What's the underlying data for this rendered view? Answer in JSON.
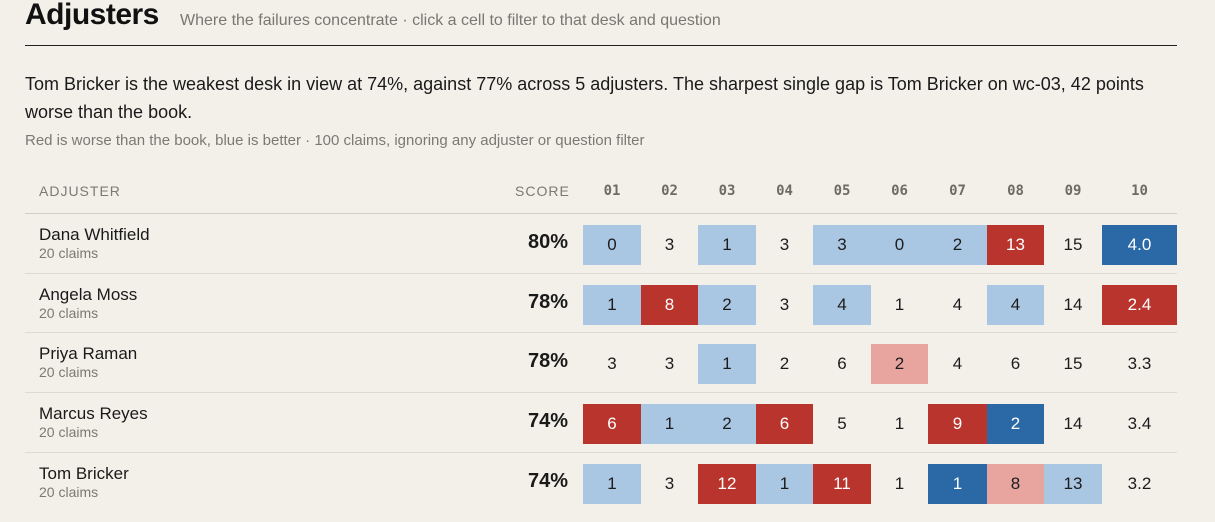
{
  "header": {
    "title": "Adjusters",
    "subtitle": "Where the failures concentrate · click a cell to filter to that desk and question"
  },
  "summary": "Tom Bricker is the weakest desk in view at 74%, against 77% across 5 adjusters. The sharpest single gap is Tom Bricker on wc-03, 42 points worse than the book.",
  "note": "Red is worse than the book, blue is better · 100 claims, ignoring any adjuster or question filter",
  "table": {
    "headers": {
      "adjuster": "ADJUSTER",
      "score": "SCORE"
    },
    "questions": [
      "01",
      "02",
      "03",
      "04",
      "05",
      "06",
      "07",
      "08",
      "09",
      "10"
    ],
    "rows": [
      {
        "name": "Dana Whitfield",
        "claims": "20 claims",
        "score": "80%",
        "cells": [
          {
            "v": "0",
            "c": "lb"
          },
          {
            "v": "3",
            "c": "none"
          },
          {
            "v": "1",
            "c": "lb"
          },
          {
            "v": "3",
            "c": "none"
          },
          {
            "v": "3",
            "c": "lb"
          },
          {
            "v": "0",
            "c": "lb"
          },
          {
            "v": "2",
            "c": "lb"
          },
          {
            "v": "13",
            "c": "dr"
          },
          {
            "v": "15",
            "c": "none"
          },
          {
            "v": "4.0",
            "c": "db"
          }
        ]
      },
      {
        "name": "Angela Moss",
        "claims": "20 claims",
        "score": "78%",
        "cells": [
          {
            "v": "1",
            "c": "lb"
          },
          {
            "v": "8",
            "c": "dr"
          },
          {
            "v": "2",
            "c": "lb"
          },
          {
            "v": "3",
            "c": "none"
          },
          {
            "v": "4",
            "c": "lb"
          },
          {
            "v": "1",
            "c": "none"
          },
          {
            "v": "4",
            "c": "none"
          },
          {
            "v": "4",
            "c": "lb"
          },
          {
            "v": "14",
            "c": "none"
          },
          {
            "v": "2.4",
            "c": "dr"
          }
        ]
      },
      {
        "name": "Priya Raman",
        "claims": "20 claims",
        "score": "78%",
        "cells": [
          {
            "v": "3",
            "c": "none"
          },
          {
            "v": "3",
            "c": "none"
          },
          {
            "v": "1",
            "c": "lb"
          },
          {
            "v": "2",
            "c": "none"
          },
          {
            "v": "6",
            "c": "none"
          },
          {
            "v": "2",
            "c": "lr"
          },
          {
            "v": "4",
            "c": "none"
          },
          {
            "v": "6",
            "c": "none"
          },
          {
            "v": "15",
            "c": "none"
          },
          {
            "v": "3.3",
            "c": "none"
          }
        ]
      },
      {
        "name": "Marcus Reyes",
        "claims": "20 claims",
        "score": "74%",
        "cells": [
          {
            "v": "6",
            "c": "dr"
          },
          {
            "v": "1",
            "c": "lb"
          },
          {
            "v": "2",
            "c": "lb"
          },
          {
            "v": "6",
            "c": "dr"
          },
          {
            "v": "5",
            "c": "none"
          },
          {
            "v": "1",
            "c": "none"
          },
          {
            "v": "9",
            "c": "dr"
          },
          {
            "v": "2",
            "c": "db"
          },
          {
            "v": "14",
            "c": "none"
          },
          {
            "v": "3.4",
            "c": "none"
          }
        ]
      },
      {
        "name": "Tom Bricker",
        "claims": "20 claims",
        "score": "74%",
        "cells": [
          {
            "v": "1",
            "c": "lb"
          },
          {
            "v": "3",
            "c": "none"
          },
          {
            "v": "12",
            "c": "dr"
          },
          {
            "v": "1",
            "c": "lb"
          },
          {
            "v": "11",
            "c": "dr"
          },
          {
            "v": "1",
            "c": "none"
          },
          {
            "v": "1",
            "c": "db"
          },
          {
            "v": "8",
            "c": "lr"
          },
          {
            "v": "13",
            "c": "lb"
          },
          {
            "v": "3.2",
            "c": "none"
          }
        ]
      }
    ]
  },
  "colors": {
    "light_blue": "#a9c6e2",
    "dark_blue": "#2b69a6",
    "dark_red": "#b8342c",
    "light_red": "#e8a5a0",
    "background": "#f3f0ea"
  }
}
